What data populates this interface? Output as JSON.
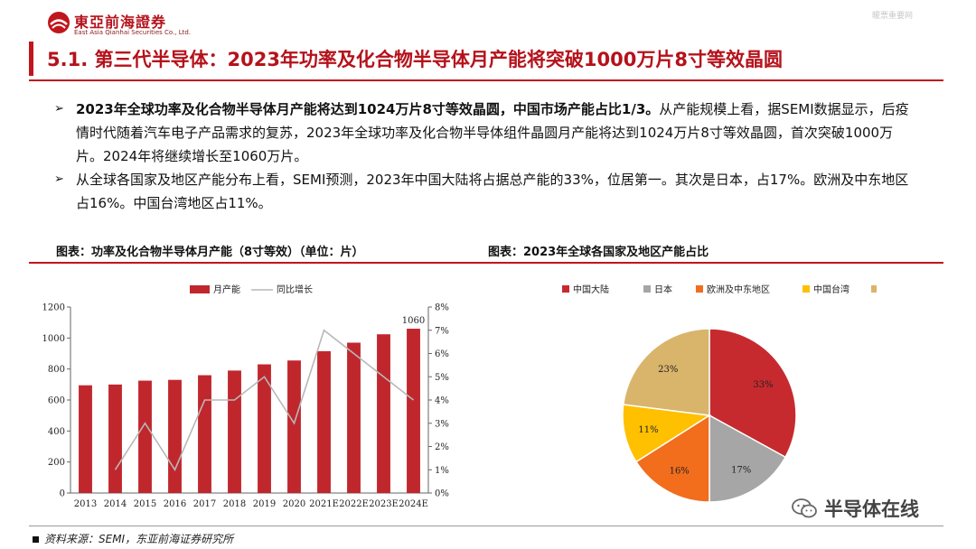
{
  "header": {
    "brand_cn": "東亞前海證券",
    "brand_en": "East Asia Qianhai Securities Co., Ltd.",
    "top_right": "暖票重要网"
  },
  "title": "5.1. 第三代半导体：2023年功率及化合物半导体月产能将突破1000万片8寸等效晶圆",
  "bullets": [
    {
      "bold": "2023年全球功率及化合物半导体月产能将达到1024万片8寸等效晶圆，中国市场产能占比1/3。",
      "text": "从产能规模上看，据SEMI数据显示，后疫情时代随着汽车电子产品需求的复苏，2023年全球功率及化合物半导体组件晶圆月产能将达到1024万片8寸等效晶圆，首次突破1000万片。2024年将继续增长至1060万片。"
    },
    {
      "bold": "",
      "text": "从全球各国家及地区产能分布上看，SEMI预测，2023年中国大陆将占据总产能的33%，位居第一。其次是日本，占17%。欧洲及中东地区占16%。中国台湾地区占11%。"
    }
  ],
  "captions": {
    "left": "图表：功率及化合物半导体月产能（8寸等效）（单位：片）",
    "right": "图表：2023年全球各国家及地区产能占比"
  },
  "chart_data": [
    {
      "type": "bar",
      "categories": [
        "2013",
        "2014",
        "2015",
        "2016",
        "2017",
        "2018",
        "2019",
        "2020",
        "2021E",
        "2022E",
        "2023E",
        "2024E"
      ],
      "series": [
        {
          "name": "月产能",
          "type": "bar",
          "axis": "left",
          "color": "#c0272d",
          "values": [
            695,
            700,
            725,
            730,
            760,
            790,
            830,
            855,
            915,
            970,
            1024,
            1060
          ]
        },
        {
          "name": "同比增长",
          "type": "line",
          "axis": "right",
          "color": "#b8b8b8",
          "values": [
            null,
            1,
            3,
            1,
            4,
            4,
            5,
            3,
            7,
            6,
            5,
            4
          ]
        }
      ],
      "data_labels": [
        {
          "category": "2024E",
          "text": "1060"
        }
      ],
      "ylim": [
        0,
        1200
      ],
      "yticks": [
        "0",
        "200",
        "400",
        "600",
        "800",
        "1000",
        "1200"
      ],
      "y2lim": [
        0,
        8
      ],
      "y2ticks": [
        "0%",
        "1%",
        "2%",
        "3%",
        "4%",
        "5%",
        "6%",
        "7%",
        "8%"
      ],
      "legend": [
        "月产能",
        "同比增长"
      ],
      "legend_position": "top"
    },
    {
      "type": "pie",
      "labels": [
        "中国大陆",
        "日本",
        "欧洲及中东地区",
        "中国台湾",
        "其他"
      ],
      "values": [
        33,
        17,
        16,
        11,
        23
      ],
      "value_labels": [
        "33%",
        "17%",
        "16%",
        "11%",
        "23%"
      ],
      "colors": [
        "#c62a2f",
        "#a6a6a6",
        "#f26d1c",
        "#ffc000",
        "#d9b46b"
      ],
      "legend_position": "top"
    }
  ],
  "source": "资料来源：SEMI，东亚前海证券研究所",
  "watermark": "半导体在线"
}
